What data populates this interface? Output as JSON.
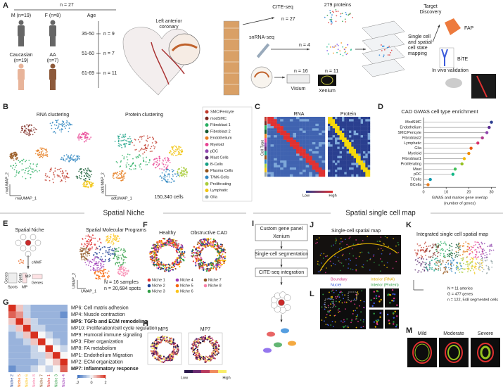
{
  "panel_labels": [
    "A",
    "B",
    "C",
    "D",
    "E",
    "F",
    "G",
    "H",
    "I",
    "J",
    "K",
    "L",
    "M"
  ],
  "section_titles": [
    "Spatial Niche",
    "Spatial single cell map"
  ],
  "a": {
    "total": "n = 27",
    "male": "M (n=19)",
    "female": "F (n=8)",
    "age": "Age",
    "age_groups": [
      {
        "range": "35-50",
        "n": "n = 9"
      },
      {
        "range": "51-60",
        "n": "n = 7"
      },
      {
        "range": "61-69",
        "n": "n = 11"
      }
    ],
    "caucasian": [
      "Caucasian",
      "(n=19)"
    ],
    "aa": [
      "AA",
      "(n=7)"
    ],
    "artery": [
      "Left anterior",
      "coronary"
    ],
    "cite": "CITE-seq",
    "cite_n": "n = 27",
    "proteins": "279 proteins",
    "snrna": "snRNA-seq",
    "snrna_n": "n = 4",
    "visium_n": "n = 16",
    "visium": "Visium",
    "xenium_n": "n = 11",
    "xenium": "Xenium",
    "mapping": [
      "Single cell",
      "and spatial",
      "cell state",
      "mapping"
    ],
    "target": [
      "Target",
      "Discovery"
    ],
    "fap": "FAP",
    "bite": "BiTE",
    "invivo": "In vivo validation"
  },
  "b": {
    "rna_title": "RNA clustering",
    "protein_title": "Protein clustering",
    "cells": "150,340 cells",
    "axes": [
      "rnaUMAP_1",
      "rnaUMAP_2",
      "adtUMAP_1",
      "adtUMAP_2"
    ],
    "legend": [
      {
        "name": "SMC/Pericyte",
        "color": "#c0392b"
      },
      {
        "name": "modSMC",
        "color": "#7b241c"
      },
      {
        "name": "Fibroblast 1",
        "color": "#27ae60"
      },
      {
        "name": "Fibroblast 2",
        "color": "#145a32"
      },
      {
        "name": "Endothelium",
        "color": "#e67e22"
      },
      {
        "name": "Myeloid",
        "color": "#e84393"
      },
      {
        "name": "pDC",
        "color": "#8e44ad"
      },
      {
        "name": "Mast Cells",
        "color": "#5b2c6f"
      },
      {
        "name": "B-Cells",
        "color": "#16a085"
      },
      {
        "name": "Plasma Cells",
        "color": "#935116"
      },
      {
        "name": "T/NK-Cells",
        "color": "#2e86c1"
      },
      {
        "name": "Proliferating",
        "color": "#a9cc3a"
      },
      {
        "name": "Lymphatic",
        "color": "#f1c40f"
      },
      {
        "name": "Glia",
        "color": "#95a5a6"
      }
    ]
  },
  "c": {
    "rna": "RNA",
    "protein": "Protein",
    "cell_type": "Cell Type",
    "low": "Low",
    "high": "High"
  },
  "chart_data": {
    "type": "lollipop",
    "title": "CAD GWAS cell type enrichment",
    "categories": [
      "ModSMC",
      "Endothelium",
      "SMC/Pericyte",
      "Fibroblast2",
      "Lymphatic",
      "Glia",
      "Myeloid",
      "Fibroblast1",
      "Proliferating",
      "Mast",
      "pDC",
      "TCells",
      "BCells"
    ],
    "values": [
      30,
      29,
      28,
      26,
      24,
      21,
      20,
      18,
      17,
      14,
      13,
      3,
      2
    ],
    "colors": [
      "#2c3e91",
      "#5b2c91",
      "#8e44ad",
      "#b03a8c",
      "#d6336c",
      "#e8590c",
      "#f08c00",
      "#f5b700",
      "#94c11f",
      "#40c057",
      "#12b886",
      "#1098ad",
      "#e67e22"
    ],
    "xlabel": [
      "GWAS and marker gene overlap",
      "(number of genes)"
    ],
    "xlim": [
      0,
      32
    ],
    "xticks": [
      0,
      10,
      20,
      30
    ]
  },
  "e": {
    "niche": "Spatial Niche",
    "programs": "Spatial Molecular Programs",
    "cnmf": "cNMF",
    "nmf_labels": [
      "Genes",
      "Spots",
      "Spots",
      "MP",
      "MP",
      "Genes"
    ],
    "samples": "N = 16 samples",
    "spots_n": "n = 20,684 spots",
    "umap": [
      "UMAP_1",
      "UMAP_2"
    ]
  },
  "f": {
    "healthy": "Healthy",
    "cad": "Obstructive CAD",
    "niches": [
      {
        "name": "Niche 1",
        "color": "#e03131"
      },
      {
        "name": "Niche 2",
        "color": "#1c3f94"
      },
      {
        "name": "Niche 3",
        "color": "#2f9e44"
      },
      {
        "name": "Niche 4",
        "color": "#9c36b5"
      },
      {
        "name": "Niche 5",
        "color": "#f76707"
      },
      {
        "name": "Niche 6",
        "color": "#fcc419"
      },
      {
        "name": "Niche 7",
        "color": "#8d5524"
      },
      {
        "name": "Niche 8",
        "color": "#f783ac"
      }
    ]
  },
  "g": {
    "rows": [
      "MP6: Cell matrix adhesion",
      "MP4: Muscle contraction",
      "MP5: TGFb and ECM remodeling",
      "MP10: Proliferation/cell cycle regulation",
      "MP9: Humoral immune signaling",
      "MP3: Fiber organization",
      "MP8: FA metabolism",
      "MP1: Endothelium Migration",
      "MP2: ECM organization",
      "MP7: Inflammatory response"
    ],
    "bold_rows": [
      2,
      9
    ],
    "columns": [
      "Niche 2",
      "Niche 5",
      "Niche 6",
      "Niche 8",
      "Niche 7",
      "Niche 1",
      "Niche 3",
      "Niche 4"
    ],
    "values": [
      [
        2,
        0.5,
        -0.5,
        -1,
        -1,
        -1,
        -1,
        -1
      ],
      [
        1.5,
        1,
        -0.5,
        -1,
        -1,
        -1,
        -1,
        -1.5
      ],
      [
        0.5,
        2,
        0.5,
        -0.5,
        -1,
        -1,
        -1,
        -1
      ],
      [
        -0.5,
        0.5,
        2,
        -0.5,
        -0.5,
        -1,
        -1,
        -1
      ],
      [
        -1,
        -0.5,
        0.5,
        2,
        0,
        -0.5,
        -1,
        -1
      ],
      [
        -1,
        -1,
        -0.5,
        0.5,
        2,
        0,
        -0.5,
        -1
      ],
      [
        -1,
        -1,
        -1,
        -0.5,
        0,
        2,
        0,
        -0.5
      ],
      [
        -1,
        -1,
        -1,
        -0.5,
        -0.5,
        0.5,
        2,
        0
      ],
      [
        -1,
        -1,
        -1,
        -1,
        -0.5,
        0,
        0.5,
        2
      ],
      [
        -1.5,
        -1,
        -1,
        -0.5,
        0,
        -0.5,
        0,
        1.5
      ]
    ],
    "clim": [
      -2,
      2
    ],
    "colorbar_ticks": [
      -2,
      0,
      2
    ],
    "cmap": [
      "#3b6fc0",
      "#f7f7f7",
      "#d7301f"
    ]
  },
  "h": {
    "mp5": "MP5",
    "mp7": "MP7",
    "low": "Low",
    "high": "High"
  },
  "i": {
    "steps": [
      "Custom gene panel",
      "Xenium",
      "Single-cell segmentation",
      "CITE-seq integration"
    ]
  },
  "j": {
    "title": "Single-cell spatial map",
    "legend": [
      {
        "name": "Boundary",
        "color": "#d63384"
      },
      {
        "name": "Interior (RNA)",
        "color": "#e0b100"
      },
      {
        "name": "Nuclei",
        "color": "#3b5bdb"
      },
      {
        "name": "Interior (Protein)",
        "color": "#2f9e44"
      }
    ]
  },
  "k": {
    "title": "Integrated single cell spatial map",
    "stats": [
      "N = 11 arteries",
      "G = 477 genes",
      "n = 122, 548 segmented cells"
    ]
  },
  "m": {
    "titles": [
      "Mild",
      "Moderate",
      "Severe"
    ]
  }
}
